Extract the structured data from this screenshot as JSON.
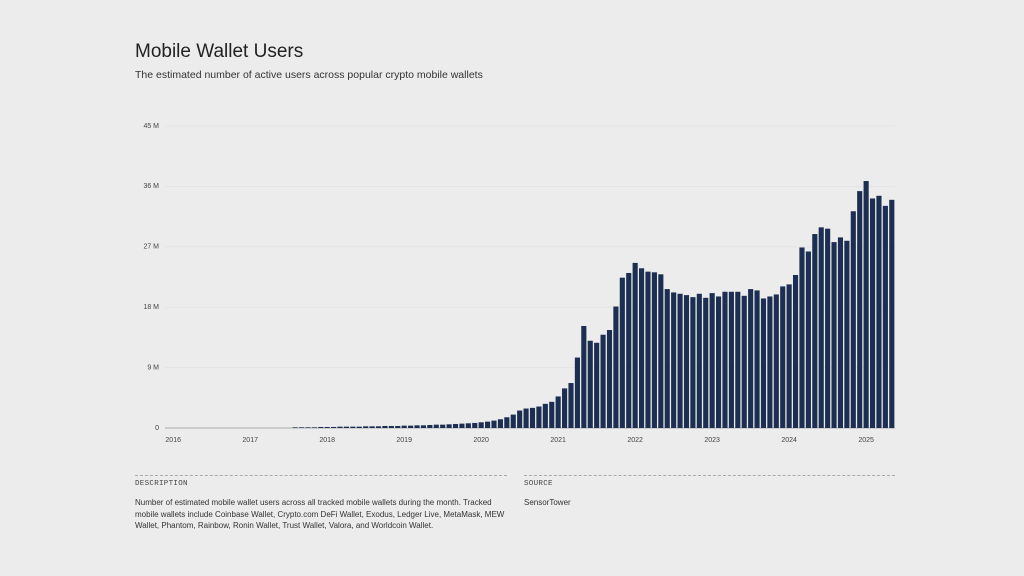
{
  "chart_data": {
    "type": "bar",
    "title": "Mobile Wallet Users",
    "subtitle": "The estimated number of active users across popular crypto mobile wallets",
    "categories": [
      "2016",
      null,
      null,
      null,
      null,
      null,
      null,
      null,
      null,
      null,
      null,
      null,
      "2017",
      null,
      null,
      null,
      null,
      null,
      null,
      null,
      null,
      null,
      null,
      null,
      "2018",
      null,
      null,
      null,
      null,
      null,
      null,
      null,
      null,
      null,
      null,
      null,
      "2019",
      null,
      null,
      null,
      null,
      null,
      null,
      null,
      null,
      null,
      null,
      null,
      "2020",
      null,
      null,
      null,
      null,
      null,
      null,
      null,
      null,
      null,
      null,
      null,
      "2021",
      null,
      null,
      null,
      null,
      null,
      null,
      null,
      null,
      null,
      null,
      null,
      "2022",
      null,
      null,
      null,
      null,
      null,
      null,
      null,
      null,
      null,
      null,
      null,
      "2023",
      null,
      null,
      null,
      null,
      null,
      null,
      null,
      null,
      null,
      null,
      null,
      "2024",
      null,
      null,
      null,
      null,
      null,
      null,
      null,
      null,
      null,
      null,
      null,
      "2025",
      null,
      null,
      null,
      null
    ],
    "values": [
      0,
      0,
      0,
      0,
      0,
      0,
      0,
      0,
      0,
      0,
      0,
      0,
      0,
      0,
      0,
      0,
      0,
      0,
      0,
      0.1,
      0.1,
      0.1,
      0.1,
      0.15,
      0.15,
      0.15,
      0.2,
      0.2,
      0.2,
      0.2,
      0.25,
      0.25,
      0.25,
      0.3,
      0.3,
      0.3,
      0.35,
      0.35,
      0.4,
      0.4,
      0.45,
      0.5,
      0.5,
      0.55,
      0.6,
      0.65,
      0.7,
      0.75,
      0.85,
      0.95,
      1.1,
      1.3,
      1.6,
      2.0,
      2.6,
      2.9,
      3.0,
      3.2,
      3.6,
      3.9,
      4.7,
      5.9,
      6.7,
      10.5,
      15.2,
      13.0,
      12.7,
      13.9,
      14.6,
      18.1,
      22.4,
      23.1,
      24.6,
      23.8,
      23.3,
      23.2,
      22.9,
      20.7,
      20.2,
      20.0,
      19.8,
      19.5,
      20.0,
      19.4,
      20.1,
      19.6,
      20.3,
      20.3,
      20.3,
      19.7,
      20.7,
      20.5,
      19.3,
      19.6,
      19.9,
      21.1,
      21.4,
      22.8,
      26.9,
      26.3,
      28.9,
      29.9,
      29.7,
      27.7,
      28.4,
      27.9,
      32.3,
      35.3,
      36.8,
      34.2,
      34.6,
      33.1,
      34.0
    ],
    "color": "#1c2f52",
    "ylim": [
      0,
      45
    ],
    "yticks": [
      0,
      {
        "value": 9,
        "label": "9 M"
      },
      {
        "value": 18,
        "label": "18 M"
      },
      {
        "value": 27,
        "label": "27 M"
      },
      {
        "value": 36,
        "label": "36 M"
      },
      {
        "value": 45,
        "label": "45 M"
      }
    ],
    "grid": true
  },
  "footer": {
    "description_heading": "DESCRIPTION",
    "description": "Number of estimated mobile wallet users across all tracked mobile wallets during the month. Tracked mobile wallets include Coinbase Wallet, Crypto.com DeFi Wallet, Exodus, Ledger Live, MetaMask, MEW Wallet, Phantom, Rainbow, Ronin Wallet, Trust Wallet, Valora, and Worldcoin Wallet.",
    "source_heading": "SOURCE",
    "source": "SensorTower"
  }
}
